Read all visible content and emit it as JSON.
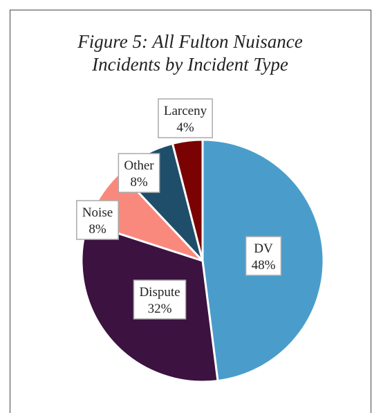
{
  "chart_data": {
    "type": "pie",
    "title": "Figure 5: All Fulton Nuisance Incidents by Incident Type",
    "categories": [
      "DV",
      "Dispute",
      "Noise",
      "Other",
      "Larceny"
    ],
    "values": [
      48,
      32,
      8,
      8,
      4
    ],
    "value_labels": [
      "48%",
      "32%",
      "8%",
      "8%",
      "4%"
    ],
    "colors": [
      "#4a9dcb",
      "#3b1240",
      "#fa897d",
      "#1f4e6a",
      "#7a0202"
    ]
  }
}
